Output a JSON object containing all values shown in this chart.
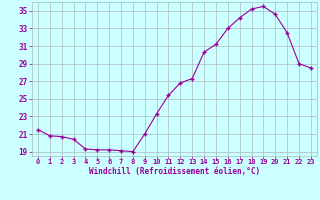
{
  "hours": [
    0,
    1,
    2,
    3,
    4,
    5,
    6,
    7,
    8,
    9,
    10,
    11,
    12,
    13,
    14,
    15,
    16,
    17,
    18,
    19,
    20,
    21,
    22,
    23
  ],
  "values": [
    21.5,
    20.8,
    20.7,
    20.4,
    19.3,
    19.2,
    19.2,
    19.1,
    19.0,
    21.0,
    23.3,
    25.4,
    26.8,
    27.3,
    30.3,
    31.2,
    33.0,
    34.2,
    35.2,
    35.5,
    34.6,
    32.5,
    29.0,
    28.5
  ],
  "xlabel": "Windchill (Refroidissement éolien,°C)",
  "ylim": [
    18.5,
    36.0
  ],
  "xlim": [
    -0.5,
    23.5
  ],
  "yticks": [
    19,
    21,
    23,
    25,
    27,
    29,
    31,
    33,
    35
  ],
  "xticks": [
    0,
    1,
    2,
    3,
    4,
    5,
    6,
    7,
    8,
    9,
    10,
    11,
    12,
    13,
    14,
    15,
    16,
    17,
    18,
    19,
    20,
    21,
    22,
    23
  ],
  "line_color": "#990099",
  "marker": "+",
  "background_color": "#ccffff",
  "grid_color": "#aabbbb",
  "tick_color": "#990099",
  "label_color": "#990099"
}
